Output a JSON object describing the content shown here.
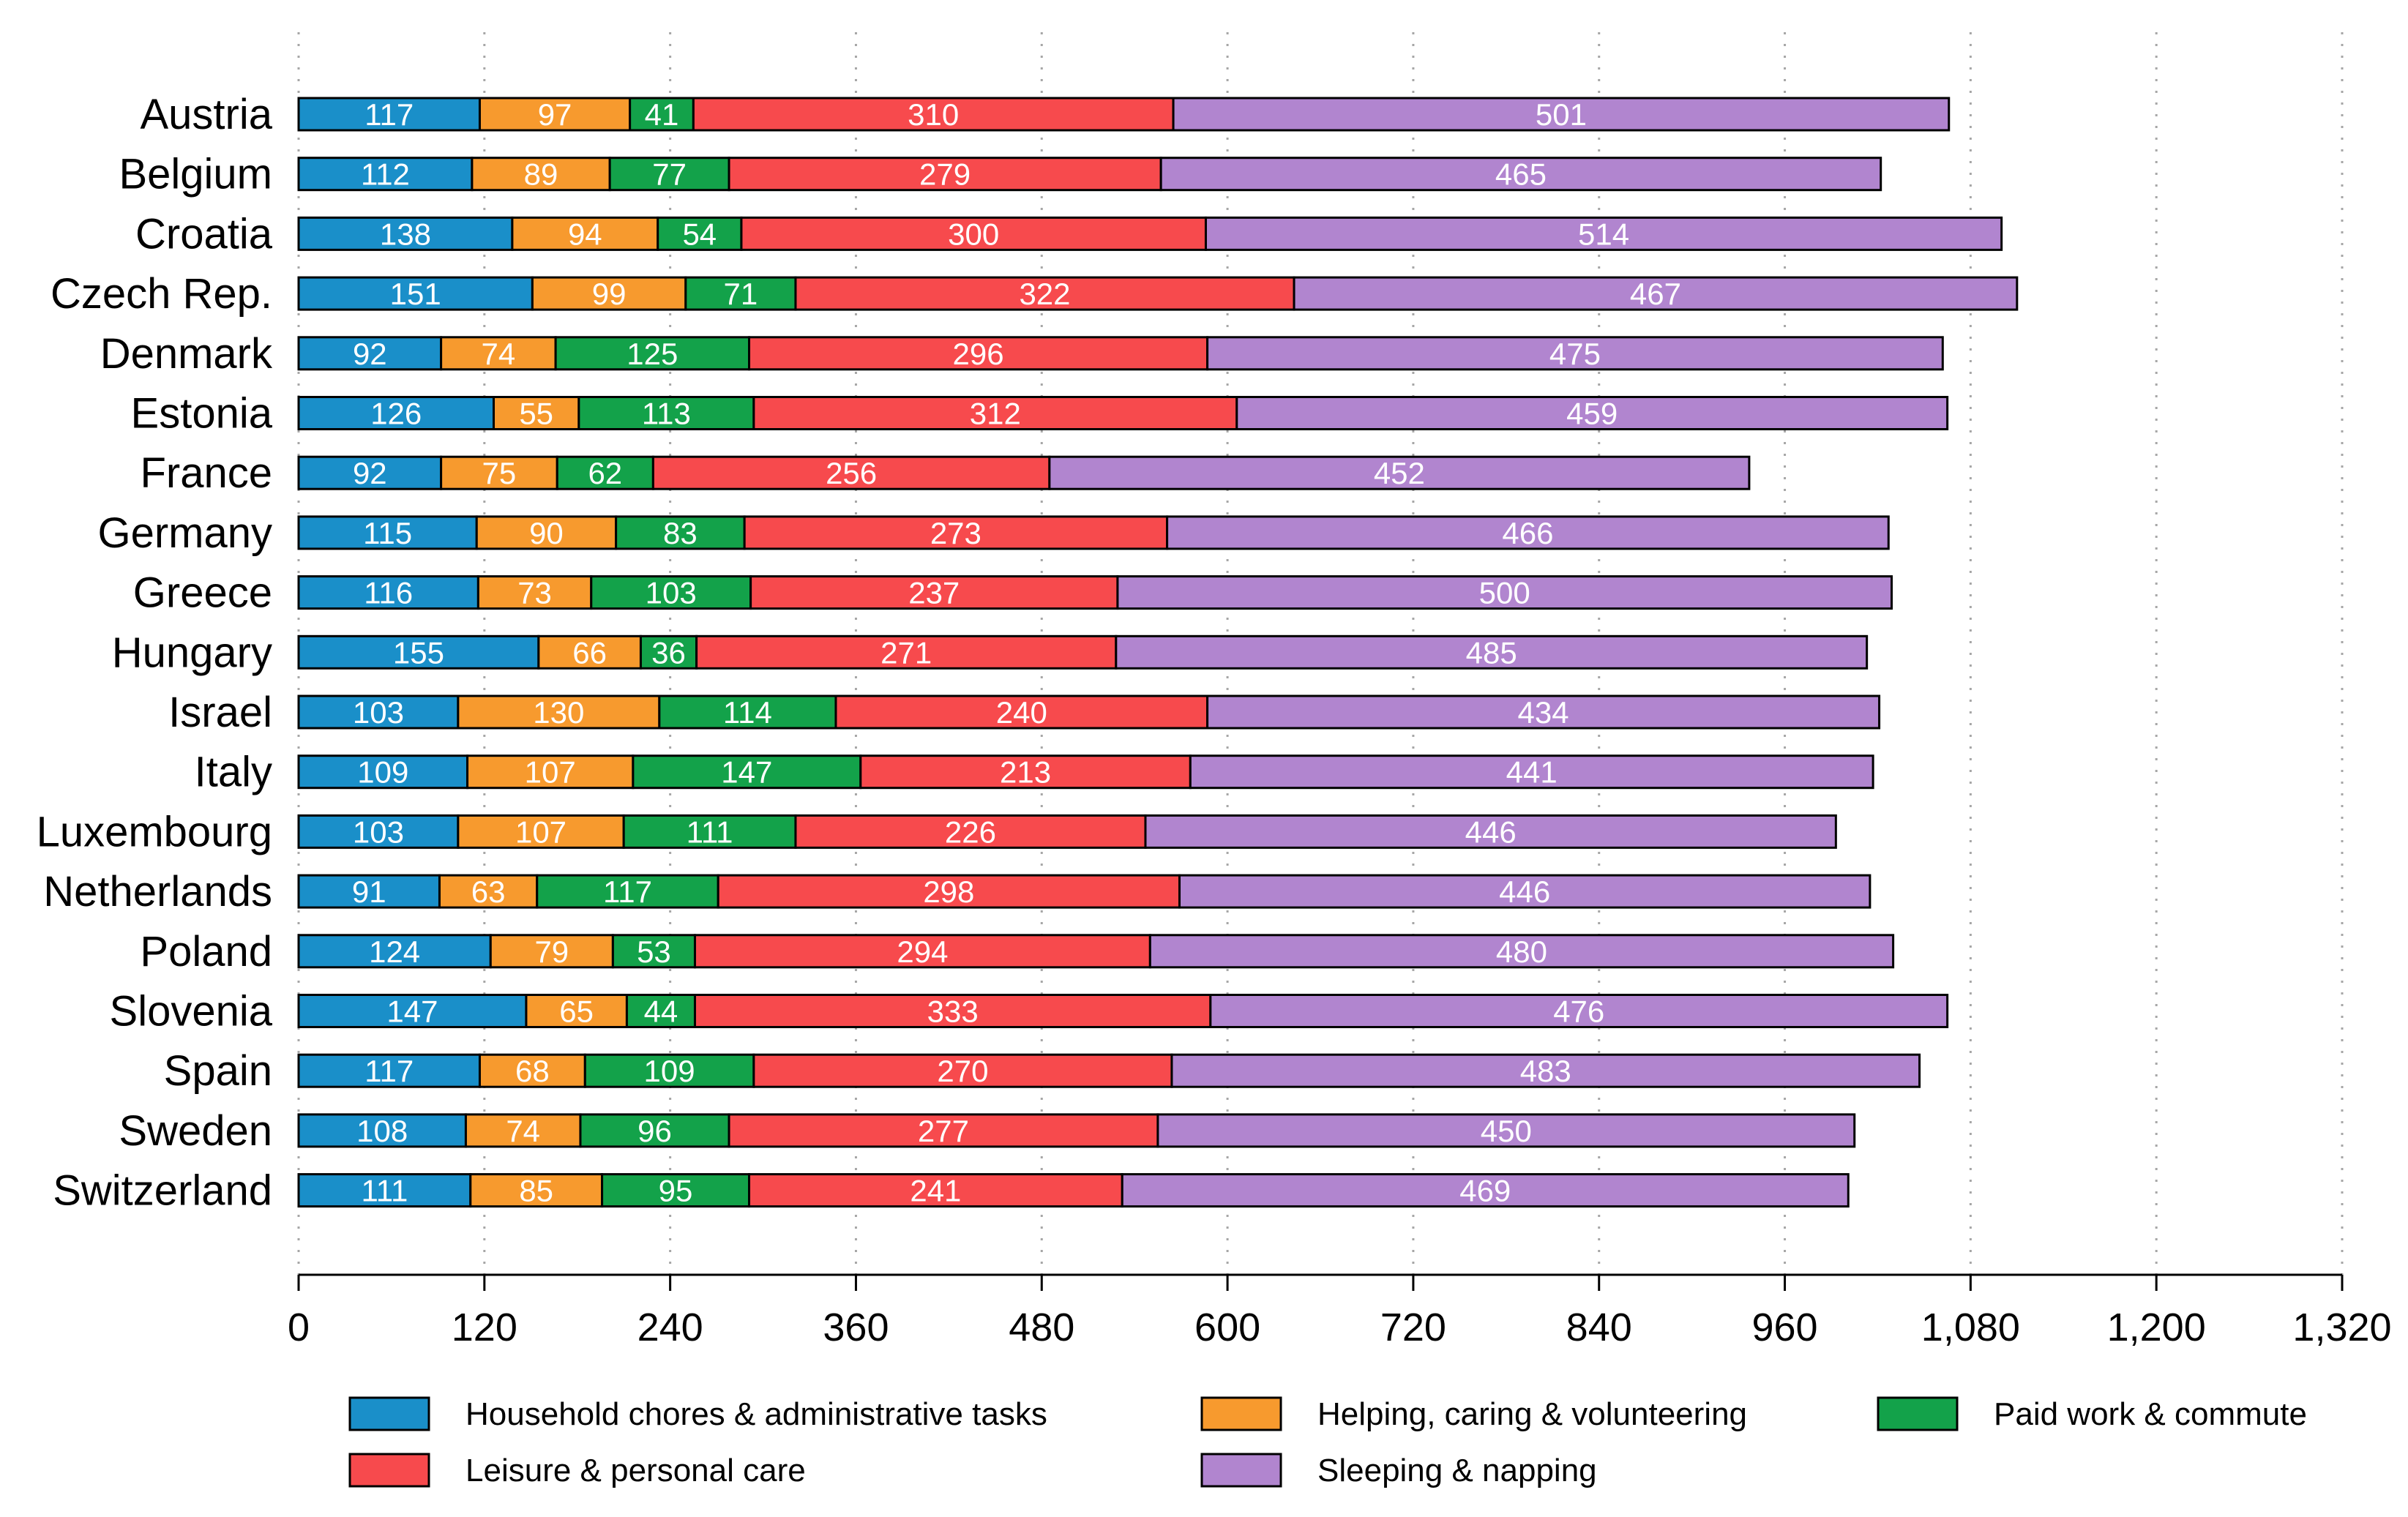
{
  "chart_data": {
    "type": "bar",
    "orientation": "horizontal",
    "stacked": true,
    "title": "",
    "xlabel": "",
    "ylabel": "",
    "xlim": [
      0,
      1320
    ],
    "xticks": [
      0,
      120,
      240,
      360,
      480,
      600,
      720,
      840,
      960,
      1080,
      1200,
      1320
    ],
    "xtick_labels": [
      "0",
      "120",
      "240",
      "360",
      "480",
      "600",
      "720",
      "840",
      "960",
      "1,080",
      "1,200",
      "1,320"
    ],
    "grid": "vertical dotted",
    "legend_position": "bottom",
    "categories": [
      "Austria",
      "Belgium",
      "Croatia",
      "Czech Rep.",
      "Denmark",
      "Estonia",
      "France",
      "Germany",
      "Greece",
      "Hungary",
      "Israel",
      "Italy",
      "Luxembourg",
      "Netherlands",
      "Poland",
      "Slovenia",
      "Spain",
      "Sweden",
      "Switzerland"
    ],
    "series": [
      {
        "name": "Household chores & administrative tasks",
        "color": "#1a8fc9",
        "values": [
          117,
          112,
          138,
          151,
          92,
          126,
          92,
          115,
          116,
          155,
          103,
          109,
          103,
          91,
          124,
          147,
          117,
          108,
          111
        ]
      },
      {
        "name": "Helping, caring & volunteering",
        "color": "#f79a2e",
        "values": [
          97,
          89,
          94,
          99,
          74,
          55,
          75,
          90,
          73,
          66,
          130,
          107,
          107,
          63,
          79,
          65,
          68,
          74,
          85
        ]
      },
      {
        "name": "Paid work & commute",
        "color": "#13a24a",
        "values": [
          41,
          77,
          54,
          71,
          125,
          113,
          62,
          83,
          103,
          36,
          114,
          147,
          111,
          117,
          53,
          44,
          109,
          96,
          95
        ]
      },
      {
        "name": "Leisure & personal care",
        "color": "#f74a4d",
        "values": [
          310,
          279,
          300,
          322,
          296,
          312,
          256,
          273,
          237,
          271,
          240,
          213,
          226,
          298,
          294,
          333,
          270,
          277,
          241
        ]
      },
      {
        "name": "Sleeping & napping",
        "color": "#b185cf",
        "values": [
          501,
          465,
          514,
          467,
          475,
          459,
          452,
          466,
          500,
          485,
          434,
          441,
          446,
          446,
          480,
          476,
          483,
          450,
          469
        ]
      }
    ]
  }
}
